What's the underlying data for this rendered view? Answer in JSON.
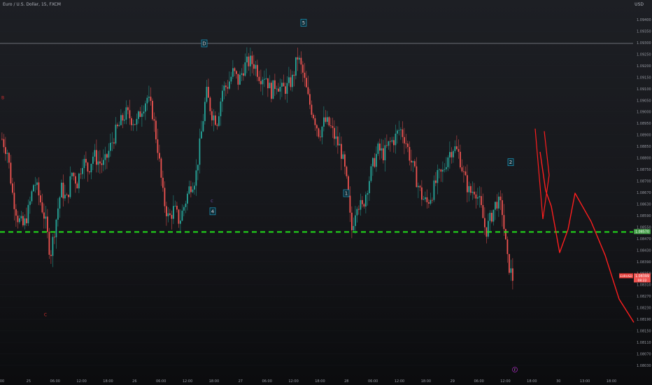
{
  "header": {
    "title": "Euro / U.S. Dollar, 15, FXCM",
    "currency": "USD"
  },
  "colors": {
    "up": "#26a69a",
    "down": "#ef5350",
    "support": "#22e01b",
    "drawing": "#ff1e1e",
    "wave_label": "#1e9ec4",
    "abc_label": "#d32f2f",
    "grid": "#22252b"
  },
  "price_axis": {
    "ticks": [
      "1.09400",
      "1.09350",
      "1.09300",
      "1.09250",
      "1.09200",
      "1.09150",
      "1.09100",
      "1.09050",
      "1.09000",
      "1.08950",
      "1.08900",
      "1.08850",
      "1.08800",
      "1.08750",
      "1.08700",
      "1.08670",
      "1.08630",
      "1.08590",
      "1.08550",
      "1.08470",
      "1.08430",
      "1.08390",
      "1.08350",
      "1.08310",
      "1.08270",
      "1.08230",
      "1.08190",
      "1.08150",
      "1.08110",
      "1.08070",
      "1.08030"
    ],
    "current_price_tag": {
      "symbol": "EURUSD",
      "price": "1.08399",
      "countdown": "08:22"
    },
    "support_tag": "1.08570"
  },
  "time_axis": {
    "ticks": [
      "00",
      "25",
      "06:00",
      "12:00",
      "18:00",
      "26",
      "06:00",
      "12:00",
      "18:00",
      "27",
      "06:00",
      "12:00",
      "18:00",
      "28",
      "06:00",
      "12:00",
      "18:00",
      "29",
      "06:00",
      "12:00",
      "18:00",
      "30",
      "13:00",
      "18:00"
    ]
  },
  "annotations": {
    "wave_labels": [
      "5",
      "D",
      "4",
      "1",
      "2"
    ],
    "abc_labels": [
      "B",
      "C"
    ],
    "small_labels": [
      "C"
    ],
    "circle_marker": "F"
  },
  "chart_data": {
    "type": "candlestick",
    "title": "Euro / U.S. Dollar, 15, FXCM",
    "ylim": [
      1.0801,
      1.0943
    ],
    "resistance_level": 1.093,
    "support_level": 1.0857,
    "close_series": [
      1.0893,
      1.0888,
      1.0871,
      1.0862,
      1.0859,
      1.0866,
      1.0877,
      1.087,
      1.0862,
      1.0848,
      1.0861,
      1.0874,
      1.0869,
      1.088,
      1.0876,
      1.0885,
      1.0881,
      1.0887,
      1.0884,
      1.0883,
      1.0889,
      1.0895,
      1.0899,
      1.0903,
      1.0901,
      1.0899,
      1.0905,
      1.0909,
      1.0903,
      1.0889,
      1.087,
      1.0862,
      1.0866,
      1.0861,
      1.0868,
      1.0875,
      1.0878,
      1.0894,
      1.0911,
      1.0903,
      1.09,
      1.0912,
      1.0914,
      1.0919,
      1.0915,
      1.0921,
      1.0923,
      1.0922,
      1.0917,
      1.0918,
      1.0911,
      1.0915,
      1.0912,
      1.0913,
      1.0916,
      1.0925,
      1.0918,
      1.0908,
      1.0902,
      1.0895,
      1.09,
      1.0898,
      1.0893,
      1.0889,
      1.0878,
      1.0857,
      1.0869,
      1.0866,
      1.0875,
      1.0883,
      1.0889,
      1.0887,
      1.0891,
      1.0893,
      1.0897,
      1.0893,
      1.0885,
      1.0878,
      1.0871,
      1.0868,
      1.0872,
      1.0878,
      1.088,
      1.0887,
      1.089,
      1.0887,
      1.0878,
      1.0872,
      1.0874,
      1.0867,
      1.0857,
      1.0863,
      1.0869,
      1.0866,
      1.0846,
      1.0839
    ],
    "projection": [
      1.0888,
      1.0873,
      1.0867,
      1.0849,
      1.0858,
      1.0872,
      1.0861,
      1.0848,
      1.0831,
      1.0822
    ]
  }
}
